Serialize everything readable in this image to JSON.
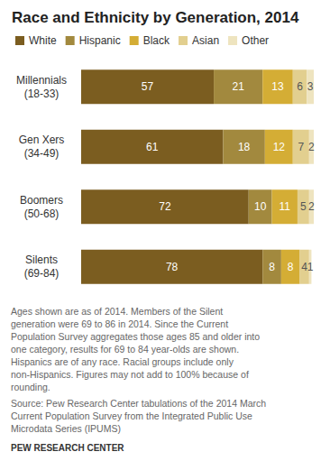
{
  "chart_data": {
    "type": "bar",
    "title": "Race and Ethnicity by Generation, 2014",
    "orientation": "horizontal",
    "stacked": true,
    "data_labels": true,
    "tick_labels": "y",
    "grid": false,
    "legend": "top-left",
    "categories": [
      "Millennials\n(18-33)",
      "Gen Xers\n(34-49)",
      "Boomers\n(50-68)",
      "Silents\n(69-84)"
    ],
    "xlim": [
      0,
      100
    ],
    "series": [
      {
        "name": "White",
        "color": "#7b5d20",
        "values": [
          57,
          61,
          72,
          78
        ]
      },
      {
        "name": "Hispanic",
        "color": "#a2893e",
        "values": [
          21,
          18,
          10,
          8
        ]
      },
      {
        "name": "Black",
        "color": "#d4ad35",
        "values": [
          13,
          12,
          11,
          8
        ]
      },
      {
        "name": "Asian",
        "color": "#e2cf8f",
        "values": [
          6,
          7,
          5,
          4
        ]
      },
      {
        "name": "Other",
        "color": "#eee4bf",
        "values": [
          3,
          2,
          2,
          1
        ]
      }
    ],
    "annotations": [
      "Ages shown are as of 2014. Members of the Silent generation were 69 to 86 in 2014. Since the Current Population Survey aggregates those ages 85 and older into one category, results for 69 to 84 year-olds are shown. Hispanics are of any race. Racial groups include only non-Hispanics. Figures may not add to 100% because of rounding.",
      "Source: Pew Research Center tabulations of the 2014 March Current Population Survey from the Integrated Public Use Microdata Series (IPUMS)",
      "PEW RESEARCH CENTER"
    ]
  }
}
